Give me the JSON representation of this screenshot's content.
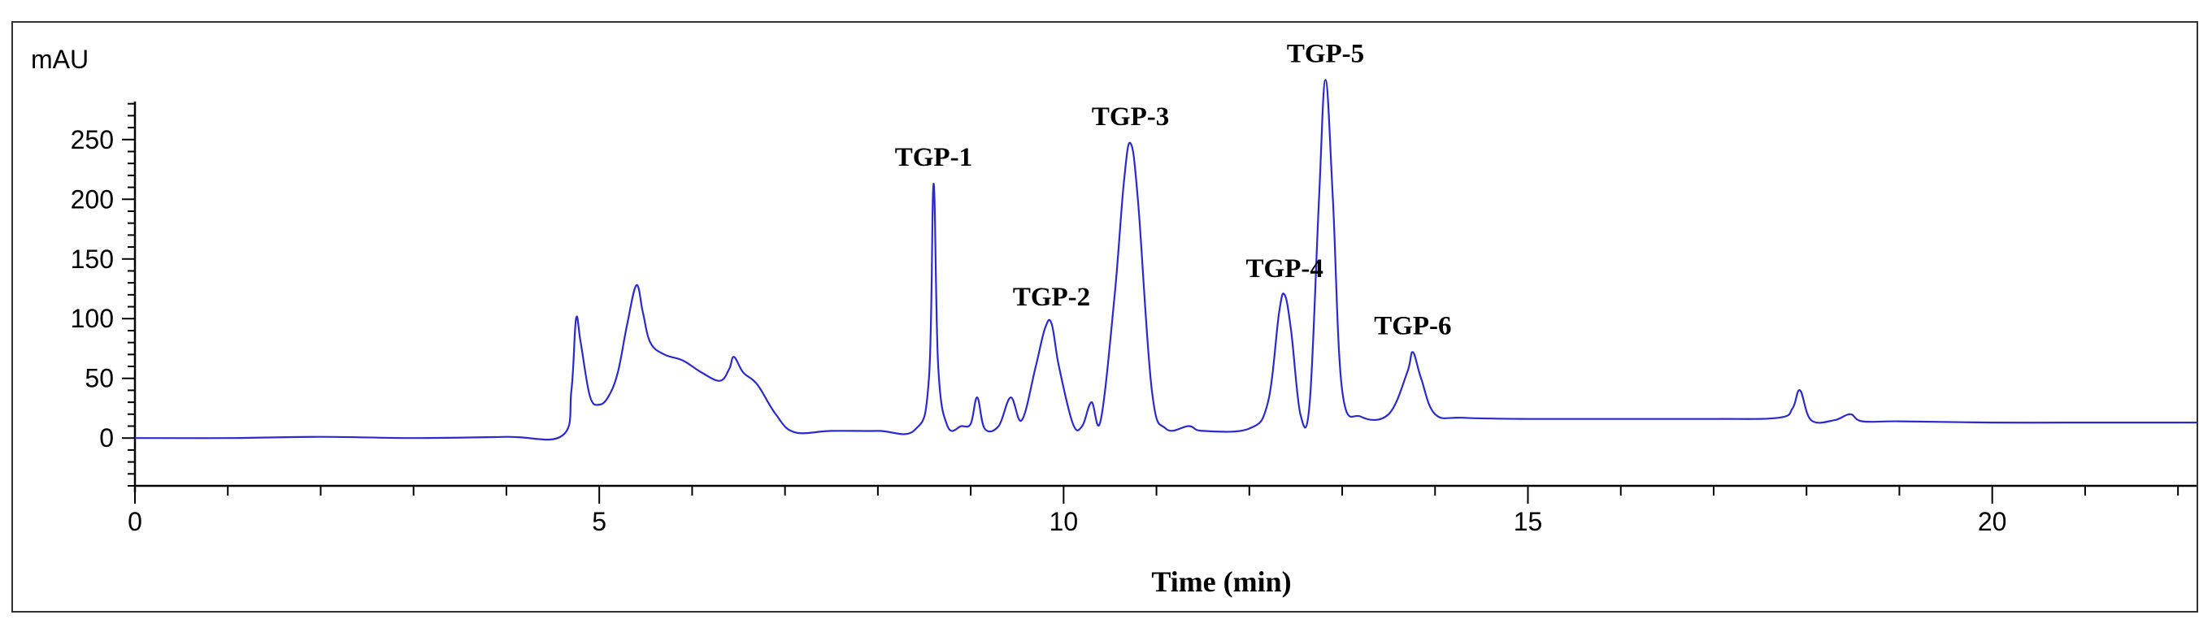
{
  "chart_data": {
    "type": "line",
    "title": "",
    "xlabel": "Time (min)",
    "ylabel": "mAU",
    "xlim": [
      0,
      22.2
    ],
    "ylim": [
      -40,
      290
    ],
    "x_ticks": [
      0,
      5,
      10,
      15,
      20
    ],
    "y_ticks": [
      0,
      50,
      100,
      150,
      200,
      250
    ],
    "grid": false,
    "line_color": "#2a2ad0",
    "series": [
      {
        "x": [
          0,
          1,
          2,
          3,
          4,
          4.6,
          4.7,
          4.75,
          4.8,
          4.9,
          5.0,
          5.1,
          5.2,
          5.3,
          5.4,
          5.47,
          5.55,
          5.7,
          5.9,
          6.1,
          6.3,
          6.4,
          6.45,
          6.55,
          6.7,
          6.9,
          7.1,
          7.5,
          8.0,
          8.4,
          8.55,
          8.6,
          8.65,
          8.75,
          8.9,
          9.0,
          9.07,
          9.15,
          9.3,
          9.43,
          9.55,
          9.7,
          9.8,
          9.87,
          9.95,
          10.1,
          10.2,
          10.3,
          10.4,
          10.55,
          10.65,
          10.72,
          10.8,
          10.95,
          11.1,
          11.35,
          11.5,
          12.0,
          12.2,
          12.32,
          12.38,
          12.45,
          12.55,
          12.65,
          12.75,
          12.82,
          12.9,
          13.0,
          13.2,
          13.5,
          13.7,
          13.76,
          13.85,
          14.0,
          14.3,
          15,
          16,
          17,
          17.7,
          17.85,
          17.93,
          18.05,
          18.3,
          18.47,
          18.6,
          19,
          20,
          21,
          22.2
        ],
        "y": [
          0,
          0,
          1,
          0,
          1,
          2,
          40,
          100,
          80,
          35,
          28,
          35,
          55,
          95,
          128,
          105,
          80,
          70,
          65,
          55,
          48,
          58,
          68,
          55,
          45,
          20,
          5,
          6,
          6,
          7,
          50,
          213,
          60,
          10,
          10,
          12,
          34,
          8,
          10,
          34,
          15,
          60,
          92,
          96,
          60,
          12,
          10,
          30,
          15,
          120,
          215,
          247,
          200,
          40,
          8,
          10,
          6,
          8,
          30,
          105,
          120,
          90,
          20,
          30,
          200,
          300,
          200,
          40,
          18,
          20,
          55,
          72,
          50,
          20,
          17,
          16,
          16,
          16,
          17,
          25,
          40,
          15,
          15,
          20,
          14,
          14,
          13,
          13,
          13
        ]
      }
    ],
    "annotations": [
      {
        "text": "TGP-1",
        "x": 8.6,
        "y": 213
      },
      {
        "text": "TGP-2",
        "x": 9.87,
        "y": 96
      },
      {
        "text": "TGP-3",
        "x": 10.72,
        "y": 247
      },
      {
        "text": "TGP-4",
        "x": 12.38,
        "y": 120
      },
      {
        "text": "TGP-5",
        "x": 12.82,
        "y": 300
      },
      {
        "text": "TGP-6",
        "x": 13.76,
        "y": 72
      }
    ]
  }
}
